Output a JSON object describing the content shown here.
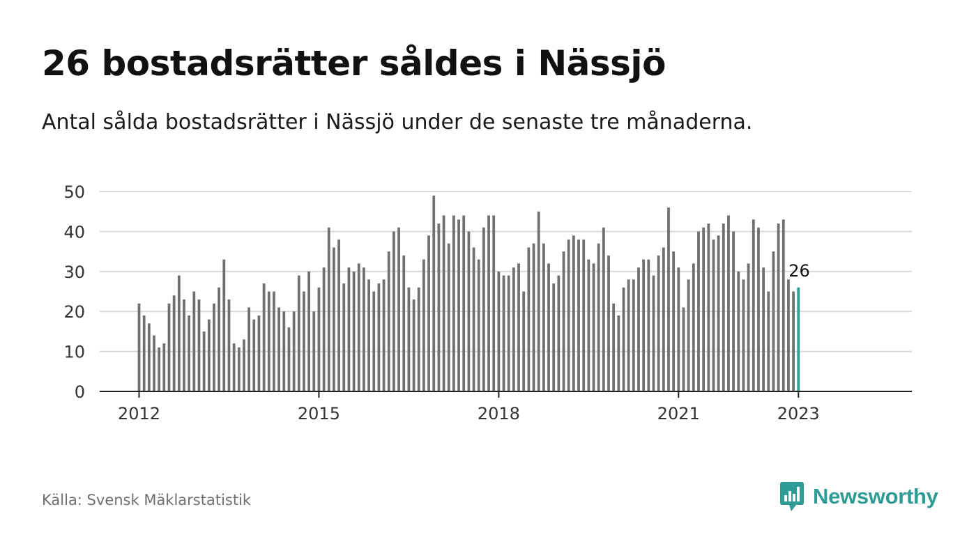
{
  "title": "26 bostadsrätter såldes i Nässjö",
  "subtitle": "Antal sålda bostadsrätter i Nässjö under de senaste tre månaderna.",
  "source": "Källa: Svensk Mäklarstatistik",
  "brand": {
    "name": "Newsworthy",
    "logo_icon": "bar-chart-speech-bubble-icon",
    "color": "#2e9c94"
  },
  "chart_data": {
    "type": "bar",
    "x_start": "2012-01",
    "x_end": "2023-01",
    "x_tick_labels": [
      "2012",
      "2015",
      "2018",
      "2021",
      "2023"
    ],
    "y_ticks": [
      0,
      10,
      20,
      30,
      40,
      50
    ],
    "ylim": [
      0,
      50
    ],
    "grid": true,
    "bar_color": "#707070",
    "highlight_color": "#2e9c94",
    "highlight_label": "26",
    "values": [
      22,
      19,
      17,
      14,
      11,
      12,
      22,
      24,
      29,
      23,
      19,
      25,
      23,
      15,
      18,
      22,
      26,
      33,
      23,
      12,
      11,
      13,
      21,
      18,
      19,
      27,
      25,
      25,
      21,
      20,
      16,
      20,
      29,
      25,
      30,
      20,
      26,
      31,
      41,
      36,
      38,
      27,
      31,
      30,
      32,
      31,
      28,
      25,
      27,
      28,
      35,
      40,
      41,
      34,
      26,
      23,
      26,
      33,
      39,
      49,
      42,
      44,
      37,
      44,
      43,
      44,
      40,
      36,
      33,
      41,
      44,
      44,
      30,
      29,
      29,
      31,
      32,
      25,
      36,
      37,
      45,
      37,
      32,
      27,
      29,
      35,
      38,
      39,
      38,
      38,
      33,
      32,
      37,
      41,
      34,
      22,
      19,
      26,
      28,
      28,
      31,
      33,
      33,
      29,
      34,
      36,
      46,
      35,
      31,
      21,
      28,
      32,
      40,
      41,
      42,
      38,
      39,
      42,
      44,
      40,
      30,
      28,
      32,
      43,
      41,
      31,
      25,
      35,
      42,
      43,
      28,
      25,
      26
    ]
  }
}
